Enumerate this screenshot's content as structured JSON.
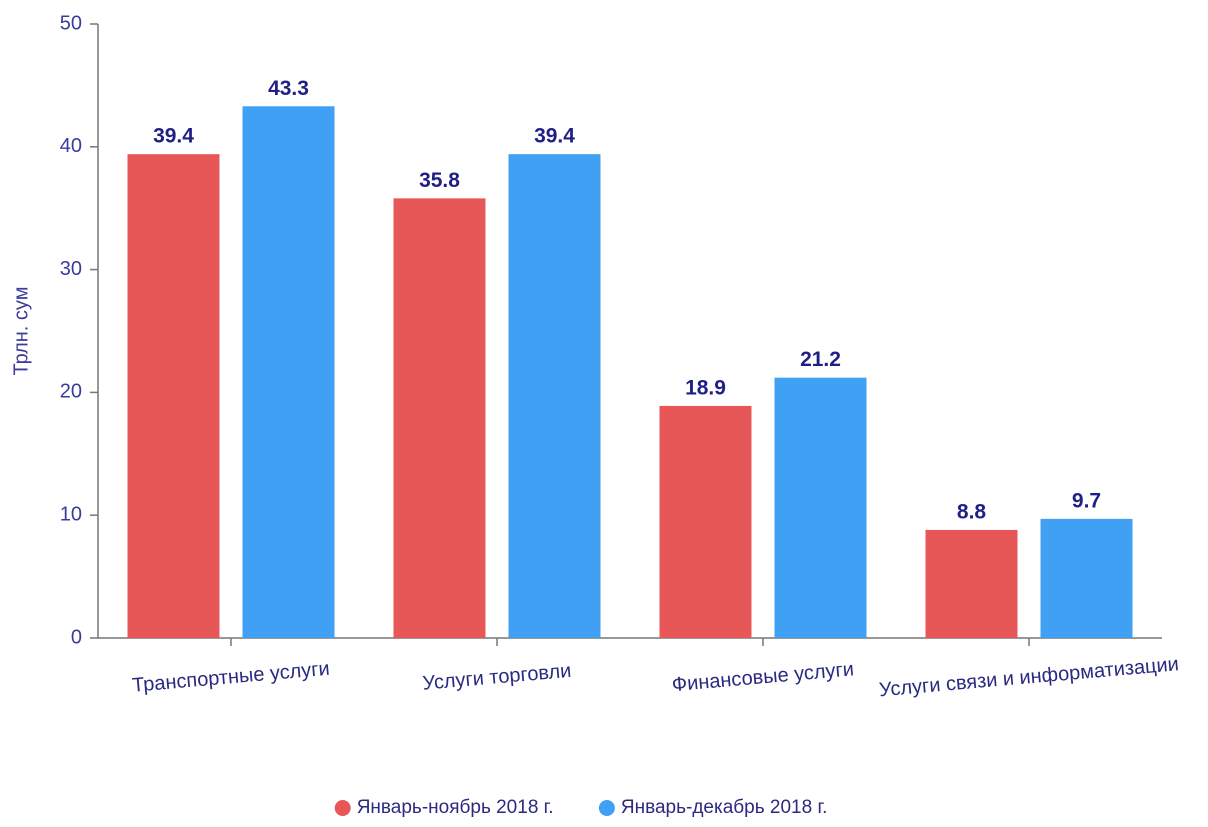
{
  "chart_data": {
    "type": "bar",
    "ylabel": "Трлн. сум",
    "categories": [
      "Транспортные услуги",
      "Услуги торговли",
      "Финансовые услуги",
      "Услуги связи и информатизации"
    ],
    "series": [
      {
        "name": "Январь-ноябрь 2018 г.",
        "color": "#e85757",
        "values": [
          39.4,
          35.8,
          18.9,
          8.8
        ]
      },
      {
        "name": "Январь-декабрь 2018 г.",
        "color": "#40a0f3",
        "values": [
          43.3,
          39.4,
          21.2,
          9.7
        ]
      }
    ],
    "ylim": [
      0,
      50
    ],
    "yticks": [
      0,
      10,
      20,
      30,
      40,
      50
    ],
    "legend": "bottom"
  }
}
